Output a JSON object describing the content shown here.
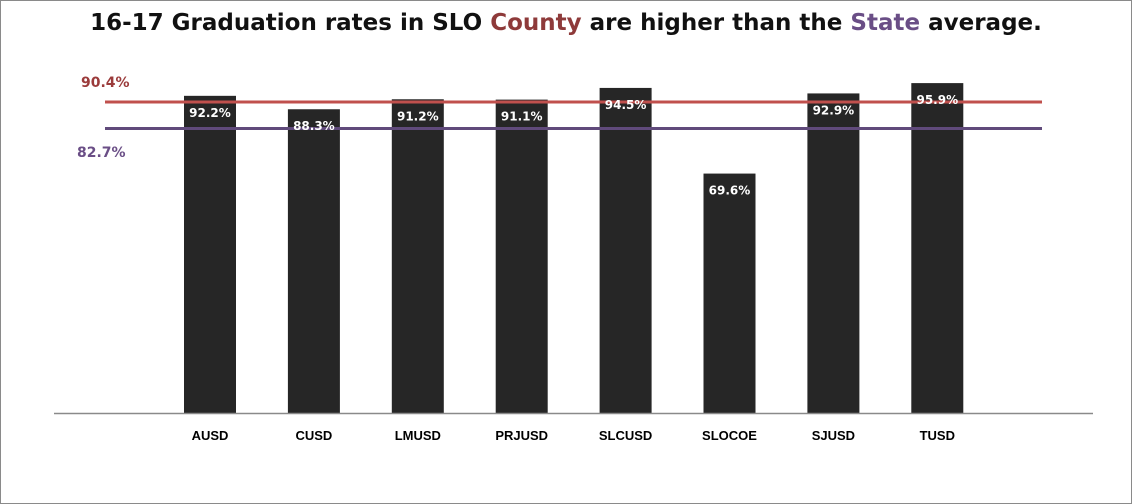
{
  "chart_data": {
    "type": "bar",
    "title": {
      "parts": [
        {
          "text": "16-17 Graduation rates in SLO ",
          "role": "plain"
        },
        {
          "text": "County",
          "role": "county"
        },
        {
          "text": " are higher than the ",
          "role": "plain"
        },
        {
          "text": "State",
          "role": "state"
        },
        {
          "text": " average.",
          "role": "plain"
        }
      ]
    },
    "xlabel": "",
    "ylabel": "",
    "ylim": [
      0,
      100
    ],
    "grid": false,
    "legend": "none",
    "categories": [
      "AUSD",
      "CUSD",
      "LMUSD",
      "PRJUSD",
      "SLCUSD",
      "SLOCOE",
      "SJUSD",
      "TUSD"
    ],
    "values": [
      92.2,
      88.3,
      91.2,
      91.1,
      94.5,
      69.6,
      92.9,
      95.9
    ],
    "data_labels": [
      "92.2%",
      "88.3%",
      "91.2%",
      "91.1%",
      "94.5%",
      "69.6%",
      "92.9%",
      "95.9%"
    ],
    "reference_lines": [
      {
        "name": "County",
        "value": 90.4,
        "label": "90.4%",
        "color": "#c0504d",
        "label_color": "#9b3b3b"
      },
      {
        "name": "State",
        "value": 82.7,
        "label": "82.7%",
        "color": "#604a7b",
        "label_color": "#6a4e86"
      }
    ],
    "colors": {
      "bar": "#262626",
      "axis": "#8a8a8a",
      "bar_label": "#ffffff"
    }
  }
}
